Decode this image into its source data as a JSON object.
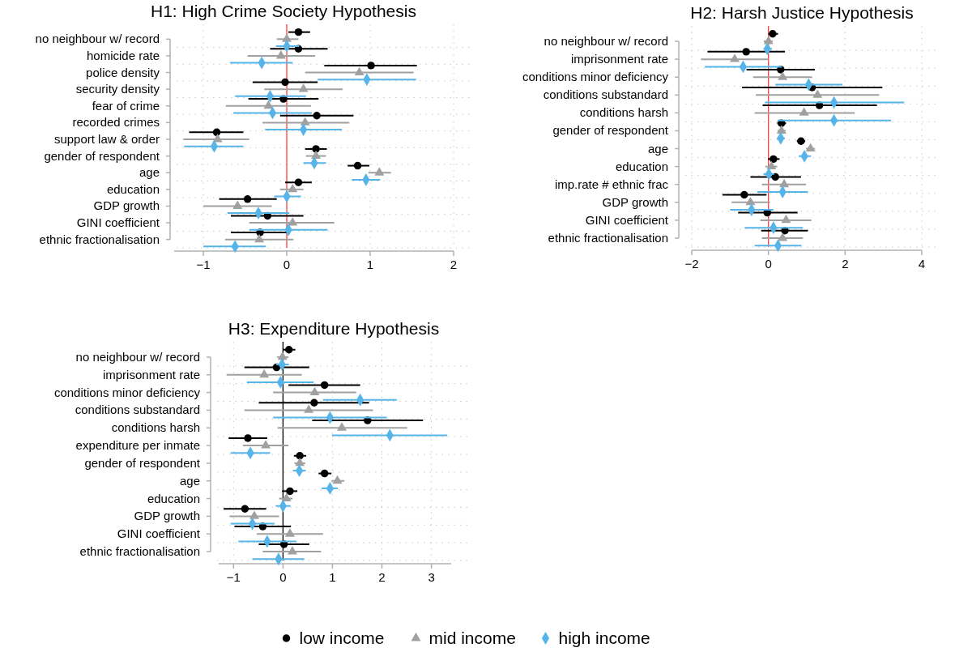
{
  "chart_data": [
    {
      "type": "scatter",
      "title": "H1: High Crime Society Hypothesis",
      "orientation": "horizontal",
      "grid": true,
      "legend": "bottom",
      "categories": [
        "no neighbour w/ record",
        "homicide rate",
        "police density",
        "security density",
        "fear of crime",
        "recorded crimes",
        "support law & order",
        "gender of respondent",
        "age",
        "education",
        "GDP growth",
        "GINI coefficient",
        "ethnic fractionalisation"
      ],
      "xlim": [
        -1.35,
        2
      ],
      "xticks": [
        -1,
        0,
        1,
        2
      ],
      "ref_lines": [
        {
          "axis": "x",
          "value": 0,
          "color": "#ff4040"
        }
      ],
      "series": [
        {
          "name": "low income",
          "color": "#000000",
          "marker": "circle",
          "values": [
            0.14,
            0.14,
            1.01,
            -0.02,
            -0.04,
            0.36,
            -0.84,
            0.35,
            0.85,
            0.14,
            -0.47,
            -0.23,
            -0.32
          ],
          "errors": [
            [
              0.02,
              0.28
            ],
            [
              -0.2,
              0.49
            ],
            [
              0.45,
              1.56
            ],
            [
              -0.41,
              0.37
            ],
            [
              -0.46,
              0.38
            ],
            [
              -0.08,
              0.8
            ],
            [
              -1.17,
              -0.52
            ],
            [
              0.22,
              0.48
            ],
            [
              0.73,
              0.99
            ],
            [
              -0.02,
              0.3
            ],
            [
              -0.81,
              -0.12
            ],
            [
              -0.67,
              0.2
            ],
            [
              -0.67,
              0.03
            ]
          ]
        },
        {
          "name": "mid income",
          "color": "#a0a0a0",
          "marker": "triangle",
          "values": [
            0.0,
            -0.07,
            0.87,
            0.2,
            -0.22,
            0.22,
            -0.83,
            0.35,
            1.11,
            0.07,
            -0.59,
            0.07,
            -0.33
          ],
          "errors": [
            [
              -0.12,
              0.14
            ],
            [
              -0.47,
              0.34
            ],
            [
              0.22,
              1.52
            ],
            [
              -0.27,
              0.67
            ],
            [
              -0.73,
              0.29
            ],
            [
              -0.29,
              0.75
            ],
            [
              -1.24,
              -0.45
            ],
            [
              0.23,
              0.47
            ],
            [
              0.98,
              1.25
            ],
            [
              -0.08,
              0.2
            ],
            [
              -1.0,
              -0.18
            ],
            [
              -0.45,
              0.57
            ],
            [
              -0.74,
              0.08
            ]
          ]
        },
        {
          "name": "high income",
          "color": "#56b4e9",
          "marker": "diamond",
          "values": [
            0.0,
            -0.3,
            0.96,
            -0.2,
            -0.17,
            0.2,
            -0.87,
            0.33,
            0.95,
            0.0,
            -0.34,
            0.02,
            -0.62
          ],
          "errors": [
            [
              -0.13,
              0.15
            ],
            [
              -0.68,
              0.07
            ],
            [
              0.37,
              1.55
            ],
            [
              -0.62,
              0.23
            ],
            [
              -0.64,
              0.3
            ],
            [
              -0.26,
              0.66
            ],
            [
              -1.23,
              -0.52
            ],
            [
              0.2,
              0.47
            ],
            [
              0.78,
              1.12
            ],
            [
              -0.15,
              0.17
            ],
            [
              -0.71,
              0.03
            ],
            [
              -0.45,
              0.49
            ],
            [
              -1.0,
              -0.25
            ]
          ]
        }
      ]
    },
    {
      "type": "scatter",
      "title": "H2: Harsh Justice Hypothesis",
      "orientation": "horizontal",
      "grid": true,
      "categories": [
        "no neighbour w/ record",
        "imprisonment rate",
        "conditions minor deficiency",
        "conditions substandard",
        "conditions harsh",
        "gender of respondent",
        "age",
        "education",
        "imp.rate # ethnic frac",
        "GDP growth",
        "GINI coefficient",
        "ethnic fractionalisation"
      ],
      "xlim": [
        -2,
        4
      ],
      "xticks": [
        -2,
        0,
        2,
        4
      ],
      "ref_lines": [
        {
          "axis": "x",
          "value": 0,
          "color": "#ff4040"
        }
      ],
      "series": [
        {
          "color": "#000000",
          "marker": "circle",
          "values": [
            0.11,
            -0.58,
            0.32,
            1.14,
            1.33,
            0.34,
            0.85,
            0.13,
            0.18,
            -0.63,
            -0.03,
            0.43
          ],
          "errors": [
            [
              0.0,
              0.25
            ],
            [
              -1.59,
              0.43
            ],
            [
              -0.57,
              1.21
            ],
            [
              -0.69,
              2.97
            ],
            [
              -0.15,
              2.83
            ],
            [
              0.23,
              0.46
            ],
            [
              0.74,
              0.96
            ],
            [
              -0.01,
              0.29
            ],
            [
              -0.47,
              0.85
            ],
            [
              -1.2,
              -0.05
            ],
            [
              -0.79,
              0.76
            ],
            [
              -0.19,
              1.03
            ]
          ]
        },
        {
          "color": "#a0a0a0",
          "marker": "triangle",
          "values": [
            0.0,
            -0.88,
            0.37,
            1.28,
            0.93,
            0.34,
            1.1,
            0.08,
            0.41,
            -0.47,
            0.46,
            0.37
          ],
          "errors": [
            [
              -0.12,
              0.11
            ],
            [
              -1.76,
              0.0
            ],
            [
              -0.4,
              1.14
            ],
            [
              -0.33,
              2.89
            ],
            [
              -0.36,
              2.25
            ],
            [
              0.24,
              0.45
            ],
            [
              0.98,
              1.21
            ],
            [
              -0.08,
              0.23
            ],
            [
              -0.17,
              0.98
            ],
            [
              -0.96,
              0.04
            ],
            [
              -0.21,
              1.12
            ],
            [
              -0.17,
              0.9
            ]
          ]
        },
        {
          "color": "#56b4e9",
          "marker": "diamond",
          "values": [
            -0.03,
            -0.66,
            1.05,
            1.71,
            1.71,
            0.32,
            0.94,
            0.01,
            0.37,
            -0.44,
            0.13,
            0.25
          ],
          "errors": [
            [
              -0.13,
              0.09
            ],
            [
              -1.66,
              0.35
            ],
            [
              0.18,
              1.93
            ],
            [
              -0.09,
              3.54
            ],
            [
              0.24,
              3.2
            ],
            [
              0.22,
              0.43
            ],
            [
              0.79,
              1.11
            ],
            [
              -0.13,
              0.15
            ],
            [
              -0.29,
              1.03
            ],
            [
              -1.0,
              0.13
            ],
            [
              -0.62,
              0.9
            ],
            [
              -0.36,
              0.86
            ]
          ]
        }
      ]
    },
    {
      "type": "scatter",
      "title": "H3: Expenditure Hypothesis",
      "orientation": "horizontal",
      "grid": true,
      "categories": [
        "no neighbour w/ record",
        "imprisonment rate",
        "conditions minor deficiency",
        "conditions substandard",
        "conditions harsh",
        "expenditure per inmate",
        "gender of respondent",
        "age",
        "education",
        "GDP growth",
        "GINI coefficient",
        "ethnic fractionalisation"
      ],
      "xlim": [
        -1.3,
        3.4
      ],
      "xticks": [
        -1,
        0,
        1,
        2,
        3
      ],
      "ref_lines": [
        {
          "axis": "x",
          "value": 0,
          "color": "#000000"
        }
      ],
      "series": [
        {
          "color": "#000000",
          "marker": "circle",
          "values": [
            0.12,
            -0.13,
            0.84,
            0.63,
            1.71,
            -0.71,
            0.34,
            0.84,
            0.14,
            -0.77,
            -0.41,
            0.02
          ],
          "errors": [
            [
              0.0,
              0.25
            ],
            [
              -0.78,
              0.53
            ],
            [
              0.11,
              1.56
            ],
            [
              -0.49,
              1.74
            ],
            [
              0.59,
              2.83
            ],
            [
              -1.1,
              -0.32
            ],
            [
              0.22,
              0.47
            ],
            [
              0.72,
              0.98
            ],
            [
              -0.02,
              0.29
            ],
            [
              -1.2,
              -0.34
            ],
            [
              -0.98,
              0.16
            ],
            [
              -0.49,
              0.53
            ]
          ]
        },
        {
          "color": "#a0a0a0",
          "marker": "triangle",
          "values": [
            -0.01,
            -0.38,
            0.64,
            0.52,
            1.19,
            -0.35,
            0.34,
            1.1,
            0.07,
            -0.58,
            0.14,
            0.19
          ],
          "errors": [
            [
              -0.12,
              0.11
            ],
            [
              -1.14,
              0.38
            ],
            [
              -0.2,
              1.48
            ],
            [
              -0.78,
              1.82
            ],
            [
              -0.11,
              2.51
            ],
            [
              -0.81,
              0.11
            ],
            [
              0.23,
              0.45
            ],
            [
              0.98,
              1.24
            ],
            [
              -0.08,
              0.19
            ],
            [
              -1.08,
              -0.08
            ],
            [
              -0.53,
              0.81
            ],
            [
              -0.41,
              0.77
            ]
          ]
        },
        {
          "color": "#56b4e9",
          "marker": "diamond",
          "values": [
            -0.02,
            -0.05,
            1.56,
            0.95,
            2.16,
            -0.66,
            0.33,
            0.95,
            0.0,
            -0.62,
            -0.32,
            -0.09
          ],
          "errors": [
            [
              -0.14,
              0.12
            ],
            [
              -0.73,
              0.62
            ],
            [
              0.81,
              2.3
            ],
            [
              -0.2,
              2.1
            ],
            [
              0.99,
              3.32
            ],
            [
              -1.06,
              -0.26
            ],
            [
              0.2,
              0.46
            ],
            [
              0.78,
              1.11
            ],
            [
              -0.15,
              0.15
            ],
            [
              -1.06,
              -0.17
            ],
            [
              -0.9,
              0.27
            ],
            [
              -0.62,
              0.43
            ]
          ]
        }
      ]
    }
  ]
}
